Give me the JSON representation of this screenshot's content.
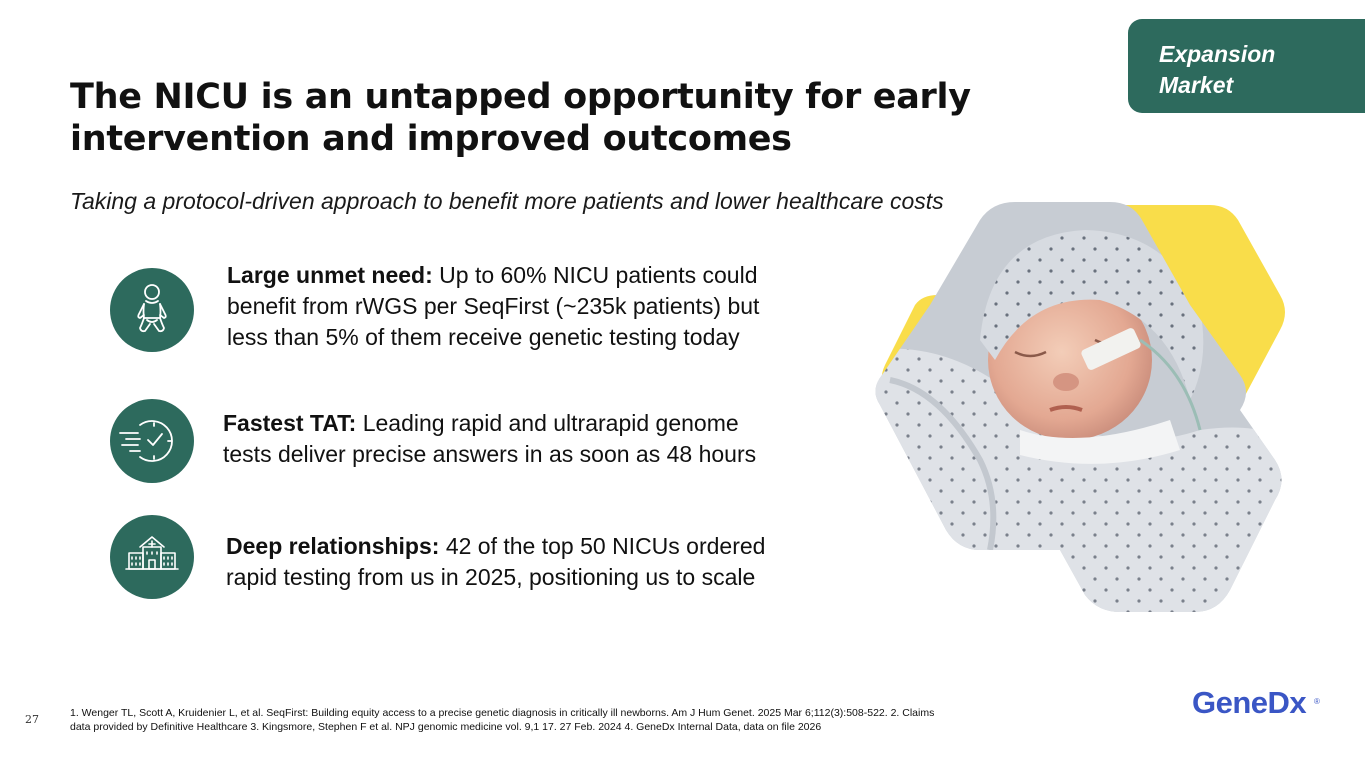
{
  "tag": {
    "line1": "Expansion",
    "line2": "Market"
  },
  "title": {
    "line1": "The NICU is an untapped opportunity for early",
    "line2": "intervention and improved outcomes"
  },
  "subtitle": "Taking a protocol-driven approach to benefit more patients and lower healthcare costs",
  "items": [
    {
      "icon": "baby-icon",
      "heading": "Large unmet need:",
      "line1_rest": " Up to 60% NICU patients could",
      "line2": "benefit from rWGS per SeqFirst (~235k patients) but",
      "line3": "less than 5% of them receive genetic testing today"
    },
    {
      "icon": "fast-clock-icon",
      "heading": "Fastest TAT:",
      "line1_rest": " Leading rapid and ultrarapid genome",
      "line2": "tests deliver precise answers in as soon as 48 hours"
    },
    {
      "icon": "hospital-icon",
      "heading": "Deep relationships:",
      "line1_rest": " 42 of the top 50 NICUs ordered",
      "line2": "rapid testing from us in 2025, positioning us to scale"
    }
  ],
  "footnote": {
    "line1": "1. Wenger TL, Scott A, Kruidenier L, et al. SeqFirst: Building equity access to a precise genetic diagnosis in critically ill newborns. Am J Hum Genet. 2025 Mar 6;112(3):508-522.  2. Claims",
    "line2": "data provided by Definitive Healthcare 3. Kingsmore, Stephen F et al. NPJ genomic medicine vol. 9,1 17. 27 Feb. 2024 4. GeneDx Internal Data, data on file 2026"
  },
  "page_number": "27",
  "logo": {
    "text": "GeneDx",
    "mark": "®"
  },
  "colors": {
    "brand_green": "#2d6a5d",
    "accent_yellow": "#f9dd4a",
    "logo_blue": "#3a56c5"
  }
}
